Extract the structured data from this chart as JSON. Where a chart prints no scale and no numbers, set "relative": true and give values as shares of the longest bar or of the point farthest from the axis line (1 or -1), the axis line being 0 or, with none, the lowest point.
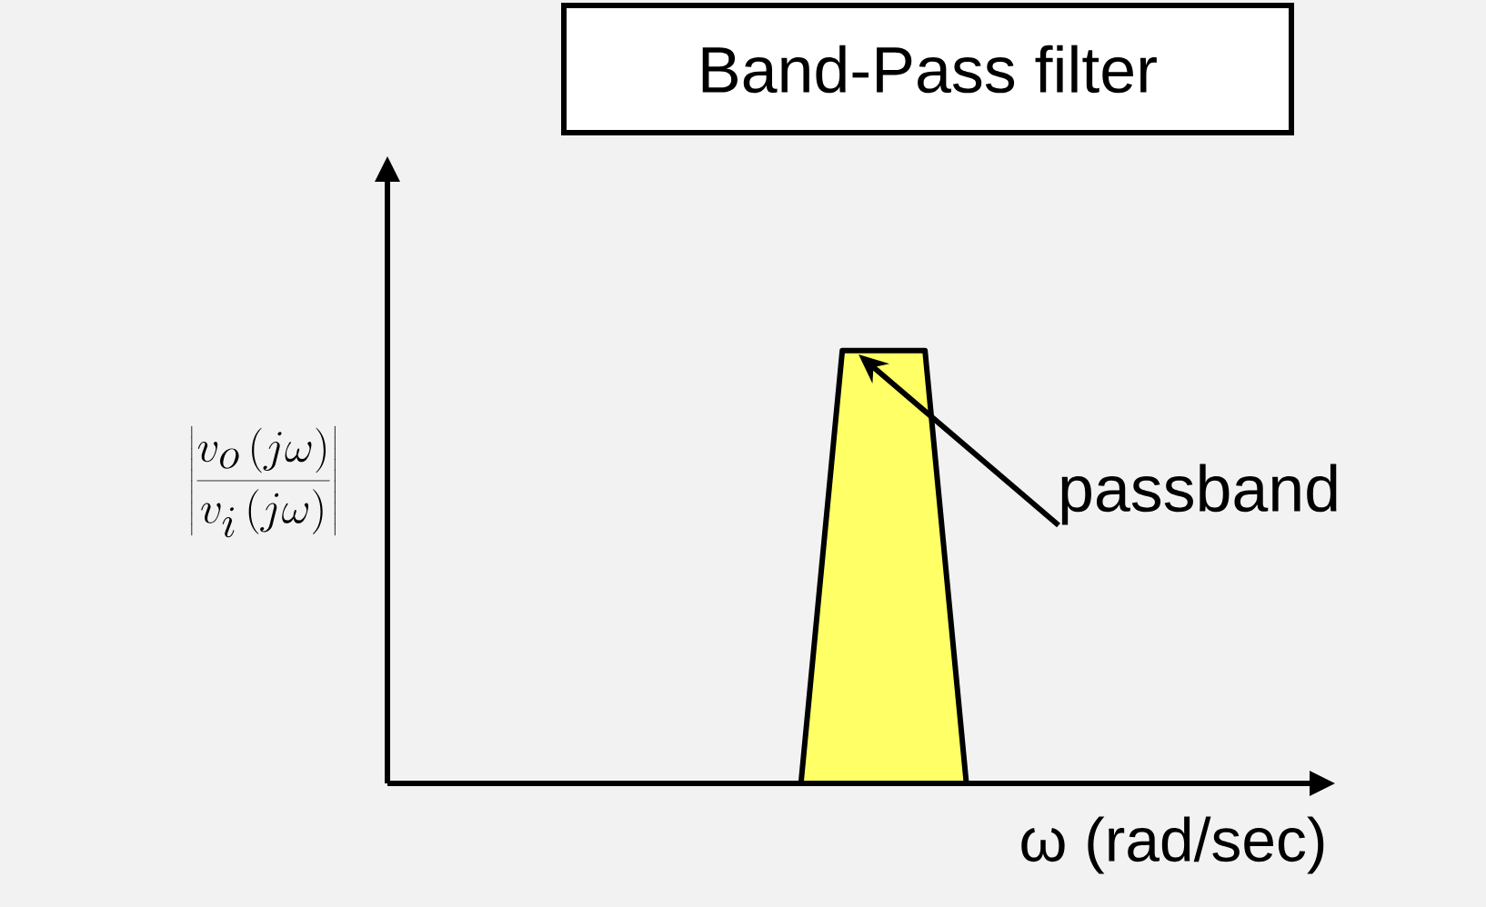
{
  "chart_data": {
    "type": "area",
    "title": "Band-Pass filter",
    "xlabel": "ω (rad/sec)",
    "ylabel": "\\left|\\frac{v_o\\left(j\\omega\\right)}{v_i\\left(j\\omega\\right)}\\right|",
    "categories": [
      null,
      null,
      null,
      null,
      null,
      null,
      null,
      null,
      null,
      null,
      null,
      null,
      null,
      null,
      null,
      null,
      null,
      null,
      null,
      null,
      null,
      null,
      null
    ],
    "values": [
      null,
      null,
      null,
      null,
      null,
      null,
      null,
      null,
      null,
      null,
      0,
      1,
      1,
      1,
      0,
      null,
      null,
      null,
      null,
      null,
      null,
      null,
      null
    ],
    "color": "#ffff66",
    "relative": true,
    "annotations": [
      "passband"
    ]
  }
}
